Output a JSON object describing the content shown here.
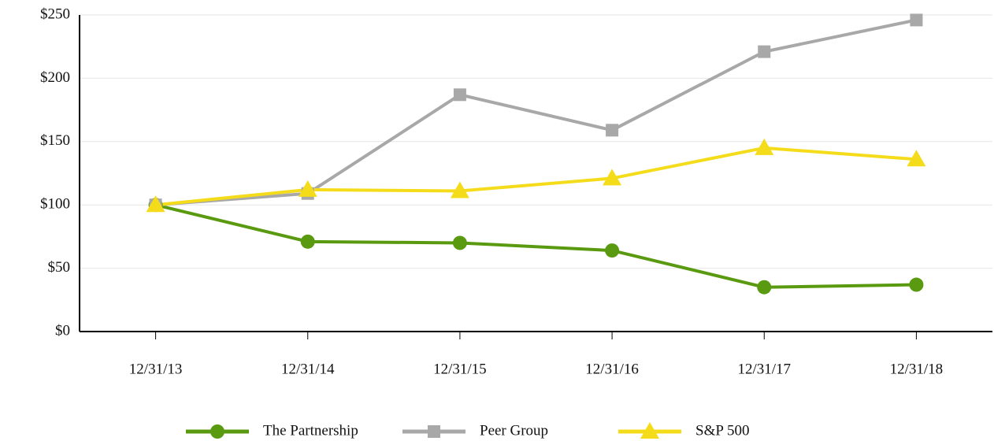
{
  "chart_data": {
    "type": "line",
    "categories": [
      "12/31/13",
      "12/31/14",
      "12/31/15",
      "12/31/16",
      "12/31/17",
      "12/31/18"
    ],
    "series": [
      {
        "name": "The Partnership",
        "color": "#5a9a10",
        "marker": "circle",
        "values": [
          100,
          71,
          70,
          64,
          35,
          37
        ]
      },
      {
        "name": "Peer Group",
        "color": "#a8a8a8",
        "marker": "square",
        "values": [
          100,
          109,
          187,
          159,
          221,
          246
        ]
      },
      {
        "name": "S&P 500",
        "color": "#f5dc1a",
        "marker": "triangle",
        "values": [
          100,
          112,
          111,
          121,
          145,
          136
        ]
      }
    ],
    "ylim": [
      0,
      250
    ],
    "yticks": [
      {
        "value": 0,
        "label": "$0"
      },
      {
        "value": 50,
        "label": "$50"
      },
      {
        "value": 100,
        "label": "$100"
      },
      {
        "value": 150,
        "label": "$150"
      },
      {
        "value": 200,
        "label": "$200"
      },
      {
        "value": 250,
        "label": "$250"
      }
    ],
    "grid": true,
    "legend": "bottom"
  }
}
